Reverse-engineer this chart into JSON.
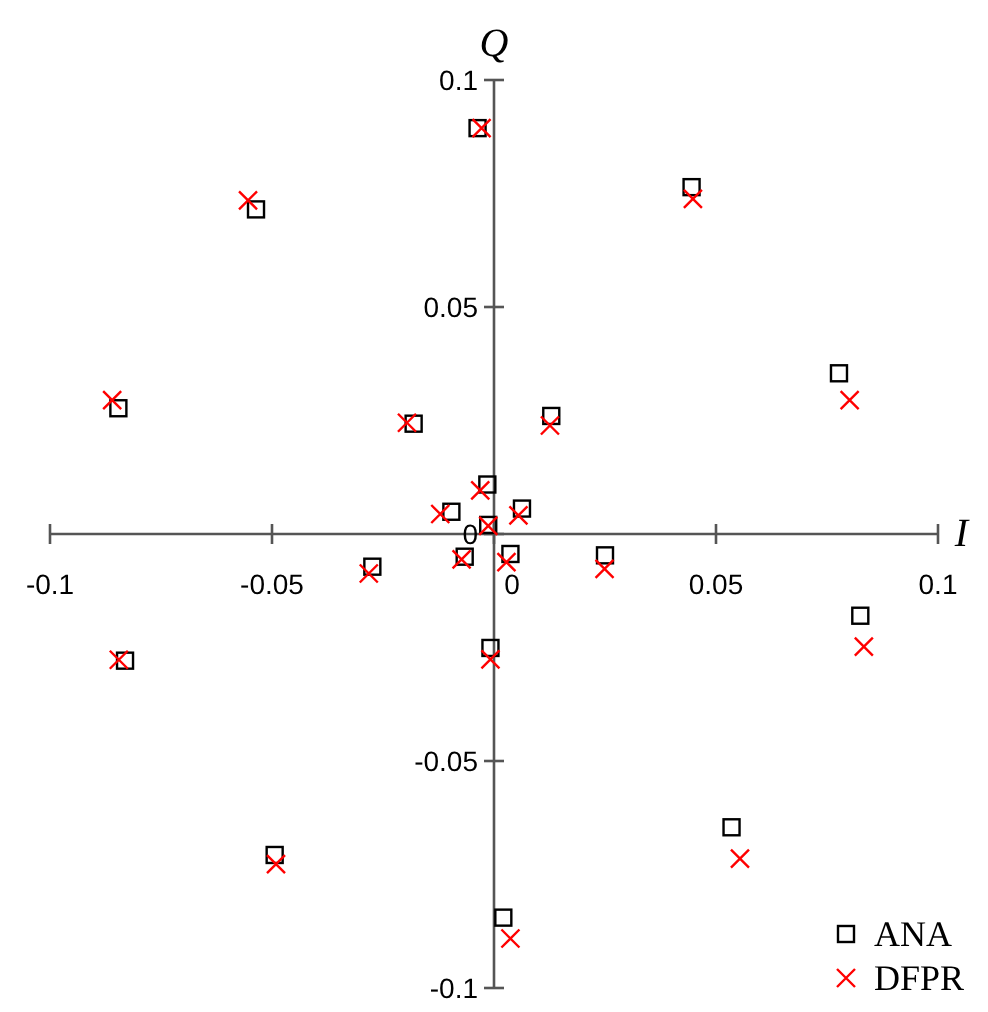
{
  "chart_data": {
    "type": "scatter",
    "xlabel": "I",
    "ylabel": "Q",
    "xlim": [
      -0.1,
      0.1
    ],
    "ylim": [
      -0.1,
      0.1
    ],
    "xticks": [
      -0.1,
      -0.05,
      0,
      0.05,
      0.1
    ],
    "yticks": [
      -0.1,
      -0.05,
      0,
      0.05,
      0.1
    ],
    "grid": false,
    "legend": "bottom right",
    "series": [
      {
        "name": "ANA",
        "color": "#000000",
        "marker": "square",
        "x": [
          -0.0037,
          -0.0536,
          -0.0846,
          -0.0181,
          -0.0015,
          -0.0096,
          -0.0013,
          -0.0066,
          0.0037,
          0.0063,
          0.0445,
          0.0777,
          0.0129,
          -0.0274,
          -0.0831,
          -0.0008,
          -0.0494,
          0.025,
          0.0825,
          0.0535,
          0.0021
        ],
        "values": [
          0.0894,
          0.0715,
          0.0277,
          0.0243,
          0.0109,
          0.0049,
          0.002,
          -0.005,
          -0.0044,
          0.0056,
          0.0764,
          0.0354,
          0.026,
          -0.0072,
          -0.0279,
          -0.0251,
          -0.0707,
          -0.0047,
          -0.018,
          -0.0646,
          -0.0845
        ]
      },
      {
        "name": "DFPR",
        "color": "#ff0000",
        "marker": "cross",
        "x": [
          -0.0028,
          -0.0554,
          -0.086,
          -0.0196,
          -0.0031,
          -0.0121,
          -0.0013,
          -0.0073,
          0.0028,
          0.0055,
          0.0448,
          0.0801,
          0.0126,
          -0.0282,
          -0.0845,
          -0.0008,
          -0.0491,
          0.0249,
          0.0833,
          0.0554,
          0.0037
        ],
        "values": [
          0.0894,
          0.0735,
          0.0295,
          0.0245,
          0.0096,
          0.0044,
          0.0018,
          -0.0056,
          -0.0062,
          0.0041,
          0.0738,
          0.0295,
          0.0239,
          -0.0087,
          -0.0277,
          -0.0276,
          -0.0727,
          -0.0077,
          -0.0248,
          -0.0715,
          -0.0891
        ]
      }
    ]
  }
}
